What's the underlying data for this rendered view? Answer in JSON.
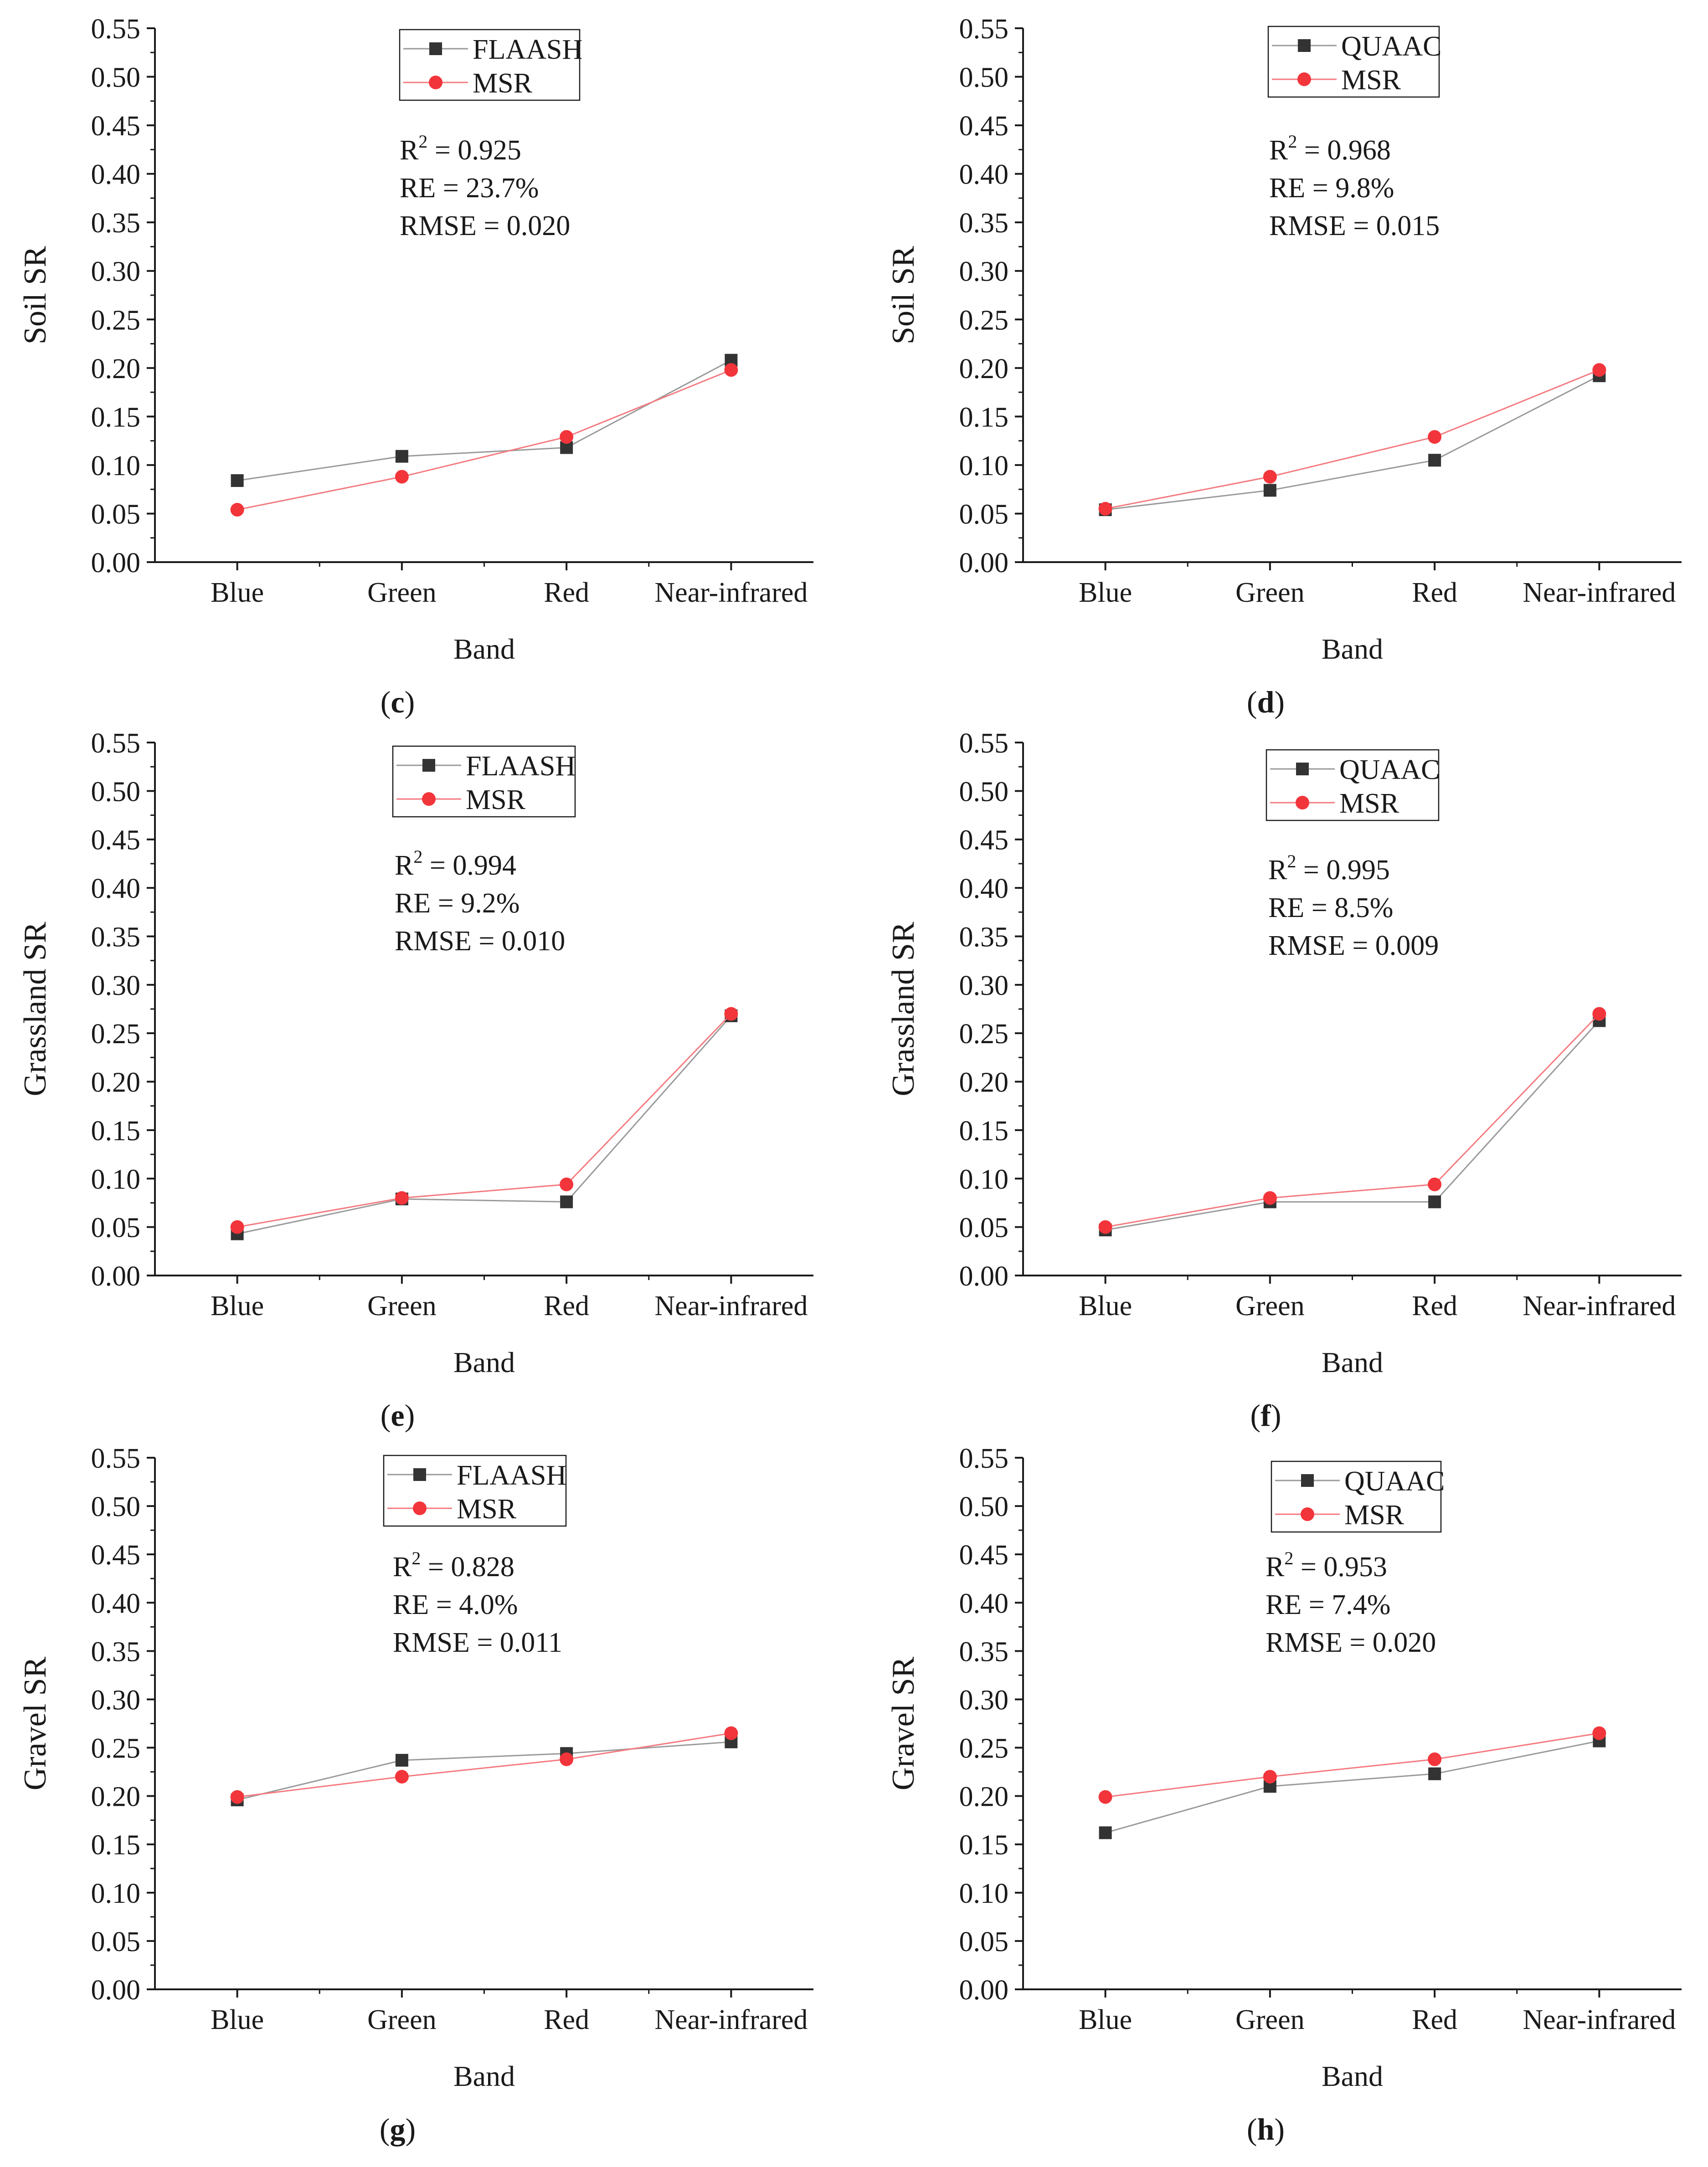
{
  "colors": {
    "axis": "#1a1a1a",
    "reference_series": "#333333",
    "msr_series": "#f2353b",
    "legend_border": "#1a1a1a",
    "reference_line": "#9a9a9a",
    "msr_line": "#f47a7f"
  },
  "chart_data": [
    {
      "type": "line",
      "panel_label": "c",
      "categories": [
        "Blue",
        "Green",
        "Red",
        "Near-infrared"
      ],
      "xlabel": "Band",
      "ylabel": "Soil SR",
      "ylim": [
        0,
        0.55
      ],
      "yticks": [
        "0.00",
        "0.05",
        "0.10",
        "0.15",
        "0.20",
        "0.25",
        "0.30",
        "0.35",
        "0.40",
        "0.45",
        "0.50",
        "0.55"
      ],
      "series": [
        {
          "name": "FLAASH",
          "marker": "square",
          "values": [
            0.084,
            0.109,
            0.118,
            0.208
          ]
        },
        {
          "name": "MSR",
          "marker": "circle",
          "values": [
            0.054,
            0.088,
            0.129,
            0.198
          ]
        }
      ],
      "stats": {
        "r2_label": "R",
        "r2_sup": "2",
        "r2_value": "=  0.925",
        "re": "RE = 23.7%",
        "rmse": "RMSE =  0.020"
      }
    },
    {
      "type": "line",
      "panel_label": "d",
      "categories": [
        "Blue",
        "Green",
        "Red",
        "Near-infrared"
      ],
      "xlabel": "Band",
      "ylabel": "Soil SR",
      "ylim": [
        0,
        0.55
      ],
      "yticks": [
        "0.00",
        "0.05",
        "0.10",
        "0.15",
        "0.20",
        "0.25",
        "0.30",
        "0.35",
        "0.40",
        "0.45",
        "0.50",
        "0.55"
      ],
      "series": [
        {
          "name": "QUAAC",
          "marker": "square",
          "values": [
            0.054,
            0.074,
            0.105,
            0.192
          ]
        },
        {
          "name": "MSR",
          "marker": "circle",
          "values": [
            0.055,
            0.088,
            0.129,
            0.198
          ]
        }
      ],
      "stats": {
        "r2_label": "R",
        "r2_sup": "2",
        "r2_value": "=  0.968",
        "re": "RE = 9.8%",
        "rmse": "RMSE =  0.015"
      }
    },
    {
      "type": "line",
      "panel_label": "e",
      "categories": [
        "Blue",
        "Green",
        "Red",
        "Near-infrared"
      ],
      "xlabel": "Band",
      "ylabel": "Grassland SR",
      "ylim": [
        0,
        0.55
      ],
      "yticks": [
        "0.00",
        "0.05",
        "0.10",
        "0.15",
        "0.20",
        "0.25",
        "0.30",
        "0.35",
        "0.40",
        "0.45",
        "0.50",
        "0.55"
      ],
      "series": [
        {
          "name": "FLAASH",
          "marker": "square",
          "values": [
            0.043,
            0.079,
            0.076,
            0.268
          ]
        },
        {
          "name": "MSR",
          "marker": "circle",
          "values": [
            0.05,
            0.08,
            0.094,
            0.27
          ]
        }
      ],
      "stats": {
        "r2_label": "R",
        "r2_sup": "2",
        "r2_value": "=  0.994",
        "re": "RE = 9.2%",
        "rmse": "RMSE =  0.010"
      }
    },
    {
      "type": "line",
      "panel_label": "f",
      "categories": [
        "Blue",
        "Green",
        "Red",
        "Near-infrared"
      ],
      "xlabel": "Band",
      "ylabel": "Grassland SR",
      "ylim": [
        0,
        0.55
      ],
      "yticks": [
        "0.00",
        "0.05",
        "0.10",
        "0.15",
        "0.20",
        "0.25",
        "0.30",
        "0.35",
        "0.40",
        "0.45",
        "0.50",
        "0.55"
      ],
      "series": [
        {
          "name": "QUAAC",
          "marker": "square",
          "values": [
            0.047,
            0.076,
            0.076,
            0.263
          ]
        },
        {
          "name": "MSR",
          "marker": "circle",
          "values": [
            0.05,
            0.08,
            0.094,
            0.27
          ]
        }
      ],
      "stats": {
        "r2_label": "R",
        "r2_sup": "2",
        "r2_value": "=  0.995",
        "re": "RE = 8.5%",
        "rmse": "RMSE =  0.009"
      }
    },
    {
      "type": "line",
      "panel_label": "g",
      "categories": [
        "Blue",
        "Green",
        "Red",
        "Near-infrared"
      ],
      "xlabel": "Band",
      "ylabel": "Gravel SR",
      "ylim": [
        0,
        0.55
      ],
      "yticks": [
        "0.00",
        "0.05",
        "0.10",
        "0.15",
        "0.20",
        "0.25",
        "0.30",
        "0.35",
        "0.40",
        "0.45",
        "0.50",
        "0.55"
      ],
      "series": [
        {
          "name": "FLAASH",
          "marker": "square",
          "values": [
            0.196,
            0.237,
            0.244,
            0.256
          ]
        },
        {
          "name": "MSR",
          "marker": "circle",
          "values": [
            0.199,
            0.22,
            0.238,
            0.265
          ]
        }
      ],
      "stats": {
        "r2_label": "R",
        "r2_sup": "2",
        "r2_value": "=  0.828",
        "re": "RE = 4.0%",
        "rmse": "RMSE =  0.011"
      }
    },
    {
      "type": "line",
      "panel_label": "h",
      "categories": [
        "Blue",
        "Green",
        "Red",
        "Near-infrared"
      ],
      "xlabel": "Band",
      "ylabel": "Gravel SR",
      "ylim": [
        0,
        0.55
      ],
      "yticks": [
        "0.00",
        "0.05",
        "0.10",
        "0.15",
        "0.20",
        "0.25",
        "0.30",
        "0.35",
        "0.40",
        "0.45",
        "0.50",
        "0.55"
      ],
      "series": [
        {
          "name": "QUAAC",
          "marker": "square",
          "values": [
            0.162,
            0.21,
            0.223,
            0.257
          ]
        },
        {
          "name": "MSR",
          "marker": "circle",
          "values": [
            0.199,
            0.22,
            0.238,
            0.265
          ]
        }
      ],
      "stats": {
        "r2_label": "R",
        "r2_sup": "2",
        "r2_value": "=  0.953",
        "re": "RE = 7.4%",
        "rmse": "RMSE =  0.020"
      }
    }
  ]
}
